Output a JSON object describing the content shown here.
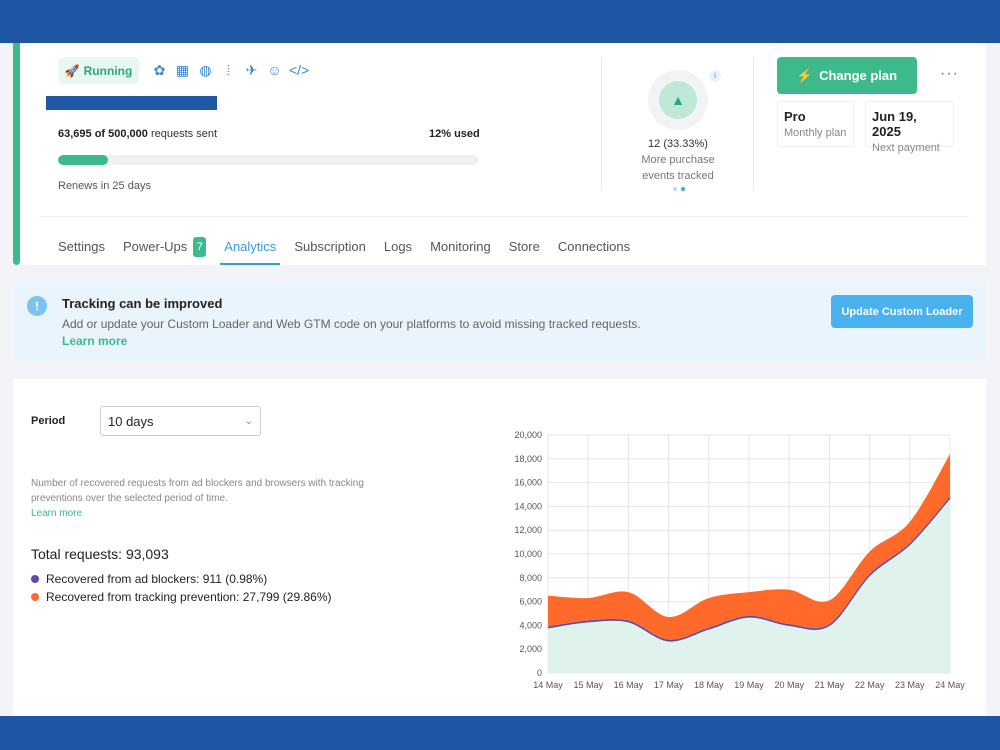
{
  "header": {
    "status_label": "Running",
    "status_emoji": "🚀",
    "platform_icons": [
      "shopify-icon",
      "storefront-icon",
      "globe-icon",
      "analytics-icon",
      "airplane-icon",
      "robot-icon",
      "code-icon"
    ],
    "requests_sent": "63,695 of 500,000",
    "requests_suffix": "requests sent",
    "percent_used": "12% used",
    "usage_fraction": 0.12,
    "renews": "Renews in 25 days",
    "metric_value": "12 (33.33%)",
    "metric_label_1": "More purchase",
    "metric_label_2": "events tracked",
    "info_glyph": "i",
    "change_plan_label": "Change plan",
    "change_plan_icon": "⚡",
    "more_glyph": "···",
    "plan_value": "Pro",
    "plan_label": "Monthly plan",
    "payment_value": "Jun 19, 2025",
    "payment_label": "Next payment"
  },
  "tabs": [
    {
      "label": "Settings"
    },
    {
      "label": "Power-Ups",
      "count": "7"
    },
    {
      "label": "Analytics",
      "active": true
    },
    {
      "label": "Subscription"
    },
    {
      "label": "Logs"
    },
    {
      "label": "Monitoring"
    },
    {
      "label": "Store"
    },
    {
      "label": "Connections"
    }
  ],
  "alert": {
    "icon": "!",
    "title": "Tracking can be improved",
    "body": "Add or update your Custom Loader and Web GTM code on your platforms to avoid missing tracked requests.",
    "link": "Learn more",
    "button": "Update Custom Loader"
  },
  "analytics": {
    "period_label": "Period",
    "period_value": "10 days",
    "description": "Number of recovered requests from ad blockers and browsers with tracking preventions over the selected period of time.",
    "learn_more": "Learn more",
    "total": "Total requests: 93,093",
    "legend": [
      {
        "label": "Recovered from ad blockers: 911 (0.98%)",
        "color": "#5b4aa8"
      },
      {
        "label": "Recovered from tracking prevention: 27,799 (29.86%)",
        "color": "#ff6a2b"
      }
    ]
  },
  "colors": {
    "accent": "#3dba8c",
    "link": "#3a9ad9",
    "band": "#1f56a3",
    "tracking_prevention": "#ff6a2b",
    "ad_blockers": "#5b4aa8",
    "base_area": "#dff3ec"
  },
  "chart_data": {
    "type": "area",
    "x": [
      "14 May",
      "15 May",
      "16 May",
      "17 May",
      "18 May",
      "19 May",
      "20 May",
      "21 May",
      "22 May",
      "23 May",
      "24 May"
    ],
    "series": [
      {
        "values": [
          3800,
          4300,
          4300,
          2700,
          3700,
          4700,
          4000,
          4000,
          8200,
          10800,
          14700
        ]
      },
      {
        "values": [
          100,
          100,
          100,
          100,
          100,
          100,
          100,
          100,
          100,
          100,
          100
        ]
      },
      {
        "values": [
          2600,
          1900,
          2400,
          1900,
          2500,
          2000,
          2900,
          2000,
          1900,
          1800,
          3600
        ]
      }
    ],
    "ylim": [
      0,
      20000
    ],
    "yticks": [
      "0",
      "2,000",
      "4,000",
      "6,000",
      "8,000",
      "10,000",
      "12,000",
      "14,000",
      "16,000",
      "18,000",
      "20,000"
    ],
    "grid": true
  }
}
